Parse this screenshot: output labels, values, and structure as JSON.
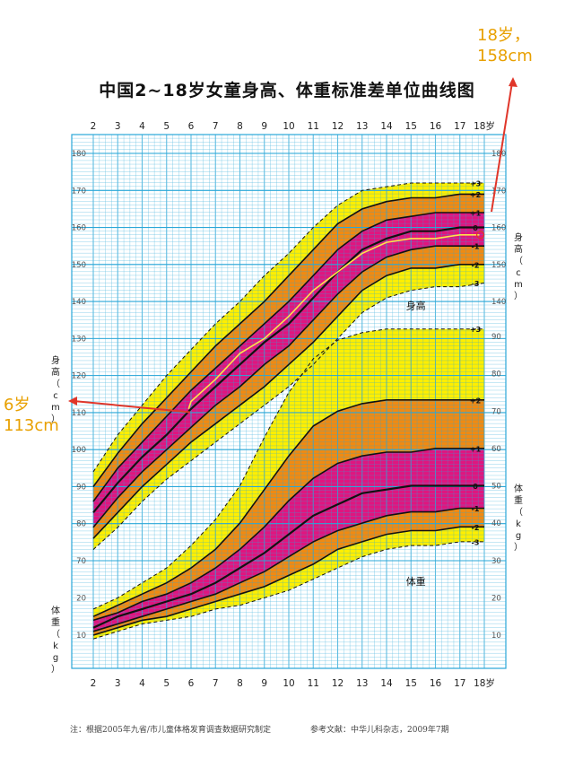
{
  "title": "中国2~18岁女童身高、体重标准差单位曲线图",
  "annotations": {
    "right_label": "18岁，",
    "right_value": "158cm",
    "left_label": "6岁",
    "left_value": "113cm",
    "arrow_color": "#e0362a",
    "text_color": "#e8a000"
  },
  "footer": {
    "note": "注：根据2005年九省/市儿童体格发育调查数据研究制定",
    "reference": "参考文献：中华儿科杂志，2009年7期"
  },
  "colors": {
    "grid": "#2aa7d8",
    "band_outer": "#ffef00",
    "band_mid": "#f08a12",
    "band_inner": "#e0157f",
    "median_line": "#ffe44a",
    "curve": "#111111"
  },
  "chart_data": {
    "type": "line",
    "x": [
      2,
      3,
      4,
      5,
      6,
      7,
      8,
      9,
      10,
      11,
      12,
      13,
      14,
      15,
      16,
      17,
      18
    ],
    "x_ticks_label": [
      "2",
      "3",
      "4",
      "5",
      "6",
      "7",
      "8",
      "9",
      "10",
      "11",
      "12",
      "13",
      "14",
      "15",
      "16",
      "17",
      "18岁"
    ],
    "height": {
      "label": "身高",
      "axis_label": "身高（cm）",
      "unit": "cm",
      "ylim": [
        65,
        185
      ],
      "left_ticks": [
        70,
        80,
        90,
        100,
        110,
        120,
        130,
        140,
        150,
        160,
        170,
        180
      ],
      "right_ticks": [
        140,
        150,
        160,
        170,
        180
      ],
      "series": [
        {
          "name": "+3",
          "values": [
            94,
            104,
            112,
            120,
            127,
            134,
            140,
            147,
            153,
            160,
            166,
            170,
            171,
            172,
            172,
            172,
            172
          ]
        },
        {
          "name": "+2",
          "values": [
            90,
            99,
            107,
            114,
            121,
            128,
            134,
            140,
            147,
            154,
            161,
            165,
            167,
            168,
            168,
            169,
            169
          ]
        },
        {
          "name": "+1",
          "values": [
            86,
            95,
            102,
            109,
            116,
            122,
            128,
            134,
            140,
            147,
            154,
            159,
            162,
            163,
            164,
            164,
            164
          ]
        },
        {
          "name": "0",
          "values": [
            83,
            91,
            98,
            104,
            111,
            117,
            123,
            129,
            134,
            141,
            148,
            154,
            157,
            159,
            159,
            160,
            160
          ]
        },
        {
          "name": "-1",
          "values": [
            79,
            87,
            94,
            100,
            106,
            112,
            117,
            123,
            128,
            135,
            142,
            148,
            152,
            154,
            155,
            155,
            155
          ]
        },
        {
          "name": "-2",
          "values": [
            76,
            83,
            90,
            96,
            102,
            107,
            112,
            117,
            123,
            129,
            136,
            143,
            147,
            149,
            149,
            150,
            150
          ]
        },
        {
          "name": "-3",
          "values": [
            73,
            79,
            86,
            92,
            97,
            102,
            107,
            112,
            117,
            123,
            130,
            137,
            141,
            143,
            144,
            144,
            145
          ]
        }
      ],
      "individual": {
        "x": [
          5.9,
          6,
          7,
          8,
          9,
          10,
          11,
          12,
          13,
          14,
          15,
          16,
          17,
          17.8
        ],
        "values": [
          111,
          113,
          119,
          126,
          130,
          136,
          143,
          148,
          153,
          156,
          157,
          157,
          158,
          158
        ]
      },
      "right_axis_label": "身高（cm）"
    },
    "weight": {
      "label": "体重",
      "axis_label": "体重（kg）",
      "unit": "kg",
      "left_ticks": [
        10,
        20
      ],
      "right_ticks": [
        10,
        20,
        30,
        40,
        50,
        60,
        70,
        80,
        90
      ],
      "series": [
        {
          "name": "+3",
          "values": [
            17,
            20,
            24,
            28,
            34,
            41,
            50,
            63,
            75,
            84,
            89,
            91,
            92,
            92,
            92,
            92,
            92
          ]
        },
        {
          "name": "+2",
          "values": [
            15,
            18,
            21,
            24,
            28,
            33,
            40,
            49,
            58,
            66,
            70,
            72,
            73,
            73,
            73,
            73,
            73
          ]
        },
        {
          "name": "+1",
          "values": [
            14,
            16,
            19,
            21,
            24,
            28,
            33,
            39,
            46,
            52,
            56,
            58,
            59,
            59,
            60,
            60,
            60
          ]
        },
        {
          "name": "0",
          "values": [
            12,
            15,
            17,
            19,
            21,
            24,
            28,
            32,
            37,
            42,
            45,
            48,
            49,
            50,
            50,
            50,
            50
          ]
        },
        {
          "name": "-1",
          "values": [
            11,
            13,
            15,
            17,
            19,
            21,
            24,
            27,
            31,
            35,
            38,
            40,
            42,
            43,
            43,
            44,
            44
          ]
        },
        {
          "name": "-2",
          "values": [
            10,
            12,
            14,
            15,
            17,
            19,
            21,
            23,
            26,
            29,
            33,
            35,
            37,
            38,
            38,
            39,
            39
          ]
        },
        {
          "name": "-3",
          "values": [
            9,
            11,
            13,
            14,
            15,
            17,
            18,
            20,
            22,
            25,
            28,
            31,
            33,
            34,
            34,
            35,
            35
          ]
        }
      ],
      "right_axis_label": "体重（kg）"
    }
  }
}
